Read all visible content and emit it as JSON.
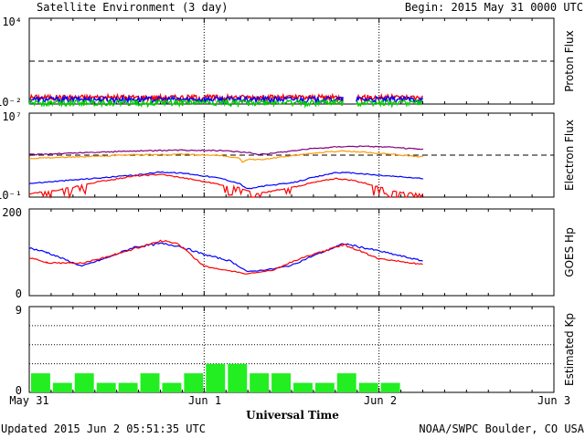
{
  "header": {
    "title": "Satellite Environment (3 day)",
    "begin_label": "Begin:  2015 May 31 0000 UTC"
  },
  "footer": {
    "updated": "Updated 2015 Jun  2 05:51:35 UTC",
    "credit": "NOAA/SWPC Boulder, CO USA",
    "xaxis_title": "Universal Time"
  },
  "x_ticks": [
    "May 31",
    "Jun 1",
    "Jun 2",
    "Jun 3"
  ],
  "colors": {
    "red": "#ff0000",
    "blue": "#0000ff",
    "green": "#00cc00",
    "orange": "#ff9900",
    "purple": "#800080",
    "kp_bar": "#22ee22"
  },
  "chart_data": [
    {
      "type": "line",
      "panel": "proton",
      "ylabel": "Proton Flux",
      "ytick_labels": [
        "10⁴",
        "10⁻²"
      ],
      "log_scale": true,
      "ylim": [
        0.01,
        10000
      ],
      "threshold": 10,
      "x_unit": "days since 2015 May 31 0000 UTC",
      "data_end": 2.25,
      "gap": [
        1.8,
        1.87
      ],
      "series": [
        {
          "color": "red",
          "level": 0.03
        },
        {
          "color": "blue",
          "level": 0.022
        },
        {
          "color": "green",
          "level": 0.013
        }
      ]
    },
    {
      "type": "line",
      "panel": "electron",
      "ylabel": "Electron Flux",
      "ytick_labels": [
        "10⁷",
        "10⁻¹"
      ],
      "log_scale": true,
      "ylim": [
        0.1,
        10000000
      ],
      "threshold": 1000,
      "series": [
        {
          "color": "purple",
          "points": [
            [
              0,
              1100
            ],
            [
              0.3,
              1700
            ],
            [
              0.6,
              2500
            ],
            [
              0.9,
              3000
            ],
            [
              1.1,
              2800
            ],
            [
              1.25,
              1800
            ],
            [
              1.3,
              1200
            ],
            [
              1.4,
              1600
            ],
            [
              1.6,
              4000
            ],
            [
              1.8,
              7000
            ],
            [
              2.0,
              6500
            ],
            [
              2.2,
              4000
            ],
            [
              2.25,
              3500
            ]
          ]
        },
        {
          "color": "orange",
          "points": [
            [
              0,
              500
            ],
            [
              0.3,
              700
            ],
            [
              0.6,
              1100
            ],
            [
              0.9,
              1200
            ],
            [
              1.1,
              900
            ],
            [
              1.2,
              500
            ],
            [
              1.22,
              200
            ],
            [
              1.25,
              400
            ],
            [
              1.35,
              400
            ],
            [
              1.5,
              900
            ],
            [
              1.7,
              2000
            ],
            [
              1.8,
              2500
            ],
            [
              2.0,
              1500
            ],
            [
              2.25,
              700
            ]
          ]
        },
        {
          "color": "blue",
          "points": [
            [
              0,
              2
            ],
            [
              0.3,
              5
            ],
            [
              0.6,
              12
            ],
            [
              0.75,
              25
            ],
            [
              0.9,
              18
            ],
            [
              1.1,
              6
            ],
            [
              1.2,
              2
            ],
            [
              1.25,
              0.6
            ],
            [
              1.35,
              1.2
            ],
            [
              1.5,
              2.2
            ],
            [
              1.6,
              6
            ],
            [
              1.75,
              22
            ],
            [
              1.85,
              20
            ],
            [
              2.0,
              12
            ],
            [
              2.25,
              6
            ]
          ]
        },
        {
          "color": "red",
          "points": [
            [
              0,
              0.2
            ],
            [
              0.2,
              0.6
            ],
            [
              0.4,
              3
            ],
            [
              0.6,
              10
            ],
            [
              0.75,
              15
            ],
            [
              0.9,
              6
            ],
            [
              1.0,
              3
            ],
            [
              1.1,
              1.5
            ],
            [
              1.2,
              0.8
            ],
            [
              1.3,
              0.2
            ],
            [
              1.4,
              0.4
            ],
            [
              1.5,
              0.8
            ],
            [
              1.6,
              2
            ],
            [
              1.75,
              6
            ],
            [
              1.85,
              4
            ],
            [
              2.0,
              1
            ],
            [
              2.1,
              0.3
            ],
            [
              2.25,
              0.2
            ]
          ]
        }
      ]
    },
    {
      "type": "line",
      "panel": "goes_hp",
      "ylabel": "GOES Hp",
      "ytick_labels": [
        "200",
        "0"
      ],
      "ylim": [
        0,
        200
      ],
      "series": [
        {
          "color": "blue",
          "points": [
            [
              0,
              110
            ],
            [
              0.1,
              100
            ],
            [
              0.3,
              68
            ],
            [
              0.45,
              88
            ],
            [
              0.6,
              112
            ],
            [
              0.75,
              120
            ],
            [
              0.85,
              115
            ],
            [
              1.0,
              95
            ],
            [
              1.15,
              80
            ],
            [
              1.25,
              55
            ],
            [
              1.4,
              62
            ],
            [
              1.5,
              70
            ],
            [
              1.6,
              88
            ],
            [
              1.75,
              112
            ],
            [
              1.8,
              120
            ],
            [
              2.0,
              103
            ],
            [
              2.25,
              80
            ]
          ]
        },
        {
          "color": "red",
          "points": [
            [
              0,
              88
            ],
            [
              0.1,
              76
            ],
            [
              0.3,
              75
            ],
            [
              0.45,
              90
            ],
            [
              0.6,
              108
            ],
            [
              0.75,
              127
            ],
            [
              0.85,
              120
            ],
            [
              1.0,
              68
            ],
            [
              1.1,
              60
            ],
            [
              1.25,
              50
            ],
            [
              1.4,
              60
            ],
            [
              1.5,
              78
            ],
            [
              1.6,
              92
            ],
            [
              1.8,
              118
            ],
            [
              2.0,
              85
            ],
            [
              2.25,
              72
            ]
          ]
        }
      ]
    },
    {
      "type": "bar",
      "panel": "kp",
      "ylabel": "Estimated Kp",
      "ytick_labels": [
        "9",
        "0"
      ],
      "ylim": [
        0,
        9
      ],
      "bar_width_days": 0.125,
      "dotted_levels": [
        3,
        5,
        7,
        9
      ],
      "values": [
        2,
        1,
        2,
        1,
        1,
        2,
        1,
        2,
        3,
        3,
        2,
        2,
        1,
        1,
        2,
        1,
        1
      ]
    }
  ]
}
